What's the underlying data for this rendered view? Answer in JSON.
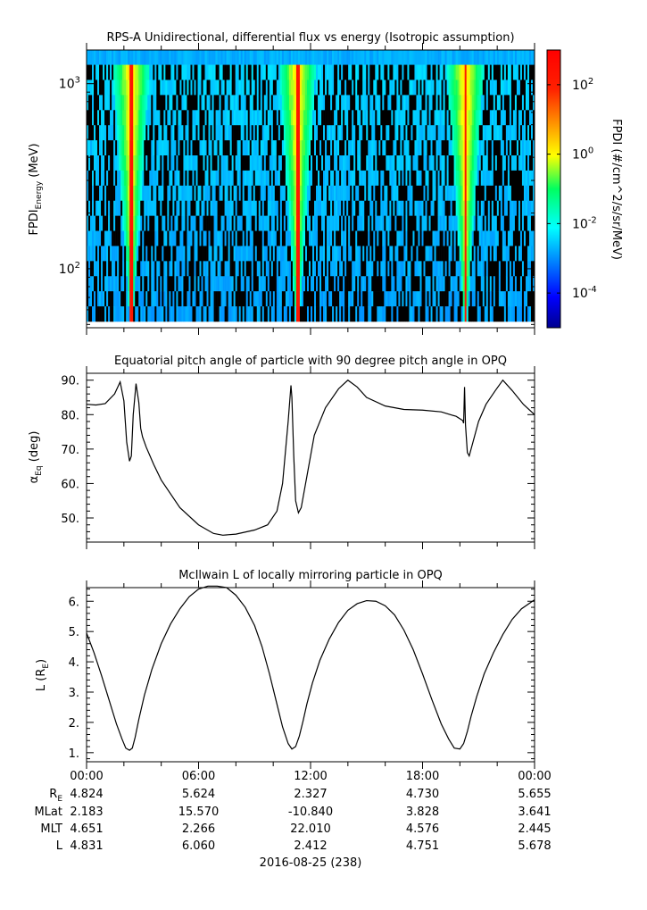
{
  "panel1": {
    "title": "RPS-A Unidirectional, differential flux vs energy (Isotropic assumption)",
    "ylabel_main": "FPDI",
    "ylabel_sub": "Energy",
    "ylabel_unit": " (MeV)",
    "colorbar_label": "FPDI (#/cm^2/s/sr/MeV)"
  },
  "panel2": {
    "title": "Equatorial pitch angle of particle with 90 degree pitch angle in OPQ",
    "ylabel_main": "α",
    "ylabel_sub": "Eq",
    "ylabel_unit": " (deg)"
  },
  "panel3": {
    "title": "McIlwain L of locally mirroring particle in OPQ",
    "ylabel_main": "L (R",
    "ylabel_sub": "E",
    "ylabel_unit": ")"
  },
  "footer": {
    "date_label": "2016-08-25 (238)",
    "row_labels": [
      {
        "main": "R",
        "sub": "E"
      },
      {
        "main": "MLat",
        "sub": ""
      },
      {
        "main": "MLT",
        "sub": ""
      },
      {
        "main": "L",
        "sub": ""
      }
    ],
    "time_labels": [
      "00:00",
      "06:00",
      "12:00",
      "18:00",
      "00:00"
    ],
    "rows": [
      [
        "4.824",
        "5.624",
        "2.327",
        "4.730",
        "5.655"
      ],
      [
        "2.183",
        "15.570",
        "-10.840",
        "3.828",
        "3.641"
      ],
      [
        "4.651",
        "2.266",
        "22.010",
        "4.576",
        "2.445"
      ],
      [
        "4.831",
        "6.060",
        "2.412",
        "4.751",
        "5.678"
      ]
    ]
  },
  "chart_data": [
    {
      "type": "heatmap",
      "title": "RPS-A Unidirectional, differential flux vs energy (Isotropic assumption)",
      "xlabel": "",
      "ylabel": "FPDI Energy (MeV)",
      "x_range_hours": [
        0,
        24
      ],
      "ylim": [
        48,
        1520
      ],
      "yscale": "log",
      "y_ticks": [
        {
          "value": 100,
          "base": "10",
          "exp": "2"
        },
        {
          "value": 1000,
          "base": "10",
          "exp": "3"
        }
      ],
      "energy_channels_approx": 18,
      "energy_range_approx_MeV": [
        58,
        1350
      ],
      "flux_peaks_hours": [
        2.4,
        11.3,
        20.3
      ],
      "colorbar": {
        "label": "FPDI (#/cm^2/s/sr/MeV)",
        "scale": "log",
        "range": [
          1e-05,
          1000.0
        ],
        "ticks": [
          {
            "value": 0.0001,
            "base": "10",
            "exp": "-4"
          },
          {
            "value": 0.01,
            "base": "10",
            "exp": "-2"
          },
          {
            "value": 1,
            "base": "10",
            "exp": "0"
          },
          {
            "value": 100.0,
            "base": "10",
            "exp": "2"
          }
        ]
      }
    },
    {
      "type": "line",
      "title": "Equatorial pitch angle of particle with 90 degree pitch angle in OPQ",
      "xlabel": "",
      "ylabel": "αEq (deg)",
      "xlim": [
        0,
        24
      ],
      "ylim": [
        43,
        92
      ],
      "y_ticks": [
        "50.",
        "60.",
        "70.",
        "80.",
        "90."
      ],
      "series": [
        {
          "x": [
            0,
            0.5,
            1.0,
            1.5,
            1.8,
            2.0,
            2.15,
            2.3,
            2.4,
            2.5,
            2.65,
            2.8,
            2.9,
            3.0,
            3.2,
            3.6,
            4.0,
            5.0,
            6.0,
            6.8,
            7.3,
            8.0,
            9.0,
            9.7,
            10.2,
            10.5,
            10.8,
            10.95,
            11.0,
            11.1,
            11.2,
            11.35,
            11.5,
            11.8,
            12.2,
            12.8,
            13.5,
            14.0,
            14.5,
            15.0,
            16.0,
            17.0,
            18.0,
            19.0,
            19.8,
            20.15,
            20.2,
            20.25,
            20.3,
            20.4,
            20.5,
            20.7,
            21.0,
            21.4,
            21.9,
            22.3,
            22.8,
            23.4,
            24.0
          ],
          "y": [
            83,
            82.8,
            83.2,
            86,
            89.5,
            84,
            72,
            66.5,
            68,
            80,
            89,
            83.5,
            76,
            73.5,
            70.5,
            65.5,
            61,
            53,
            48,
            45.5,
            45,
            45.3,
            46.5,
            48,
            52,
            60,
            78,
            88.5,
            85,
            68,
            55,
            51.5,
            53,
            62,
            74,
            82,
            87.5,
            90,
            88,
            85,
            82.5,
            81.5,
            81.3,
            80.8,
            79.5,
            78.3,
            77.5,
            88,
            77,
            69,
            68,
            72,
            78,
            83,
            87,
            90,
            87,
            83,
            80
          ]
        }
      ]
    },
    {
      "type": "line",
      "title": "McIlwain L of locally mirroring particle in OPQ",
      "xlabel": "",
      "ylabel": "L (RE)",
      "xlim": [
        0,
        24
      ],
      "ylim": [
        0.7,
        6.45
      ],
      "y_ticks": [
        "1.",
        "2.",
        "3.",
        "4.",
        "5.",
        "6."
      ],
      "series": [
        {
          "x": [
            0,
            0.4,
            0.8,
            1.2,
            1.6,
            1.9,
            2.1,
            2.3,
            2.45,
            2.6,
            2.8,
            3.1,
            3.5,
            4.0,
            4.5,
            5.0,
            5.5,
            6.0,
            6.5,
            7.0,
            7.5,
            8.0,
            8.5,
            9.0,
            9.4,
            9.8,
            10.2,
            10.5,
            10.8,
            11.0,
            11.2,
            11.4,
            11.6,
            11.8,
            12.1,
            12.5,
            13.0,
            13.5,
            14.0,
            14.5,
            15.0,
            15.5,
            16.0,
            16.5,
            17.0,
            17.5,
            18.0,
            18.5,
            19.0,
            19.4,
            19.7,
            20.0,
            20.2,
            20.4,
            20.6,
            20.9,
            21.3,
            21.8,
            22.3,
            22.8,
            23.3,
            24.0
          ],
          "y": [
            4.95,
            4.3,
            3.55,
            2.75,
            1.95,
            1.45,
            1.15,
            1.08,
            1.15,
            1.5,
            2.1,
            2.9,
            3.75,
            4.6,
            5.25,
            5.75,
            6.15,
            6.4,
            6.5,
            6.5,
            6.45,
            6.2,
            5.8,
            5.2,
            4.5,
            3.6,
            2.6,
            1.85,
            1.3,
            1.12,
            1.2,
            1.55,
            2.05,
            2.6,
            3.3,
            4.05,
            4.75,
            5.3,
            5.7,
            5.92,
            6.02,
            6.0,
            5.85,
            5.55,
            5.05,
            4.4,
            3.6,
            2.75,
            1.95,
            1.45,
            1.15,
            1.12,
            1.3,
            1.7,
            2.2,
            2.85,
            3.6,
            4.3,
            4.9,
            5.4,
            5.75,
            6.05
          ]
        }
      ]
    }
  ]
}
